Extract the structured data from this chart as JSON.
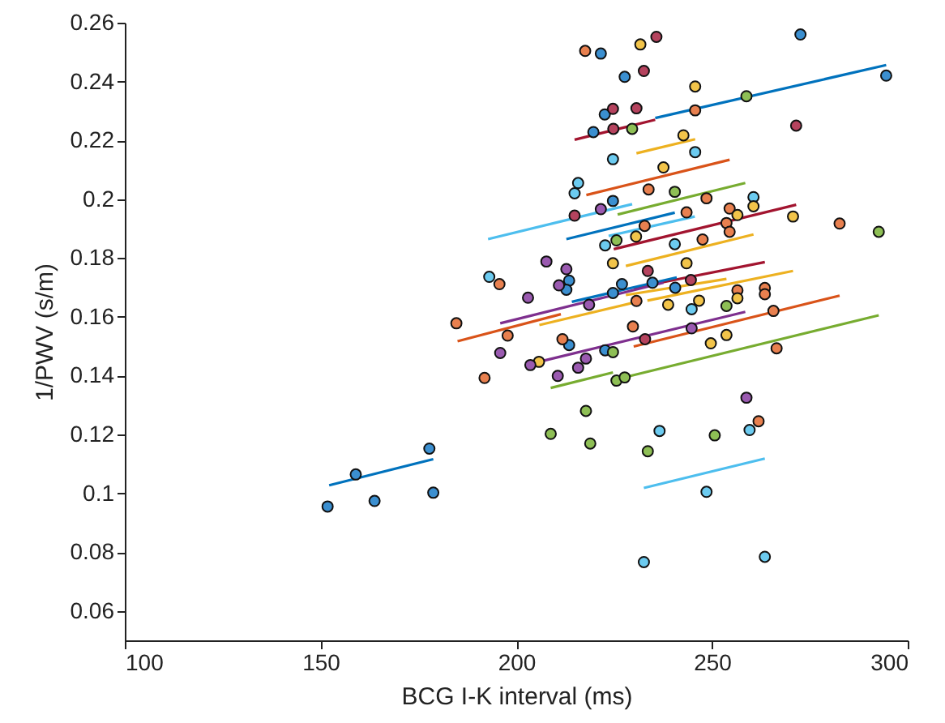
{
  "chart_data": {
    "type": "scatter",
    "xlabel": "BCG I-K interval (ms)",
    "ylabel": "1/PWV (s/m)",
    "xlim": [
      100,
      300
    ],
    "xticks": [
      100,
      150,
      200,
      250,
      300
    ],
    "ylim": [
      0.05,
      0.26
    ],
    "yticks": [
      0.06,
      0.08,
      0.1,
      0.12,
      0.14,
      0.16,
      0.18,
      0.2,
      0.22,
      0.24,
      0.26
    ],
    "grid": false,
    "marker": "circle",
    "series": [
      {
        "type": "scatter",
        "color": "#3b8fd0",
        "x": [
          221.6,
          272.6,
          227.7,
          294.5,
          222.6,
          219.7,
          224.7,
          213.5,
          212.8,
          227,
          234.8,
          240.6,
          224.7,
          213.5,
          222.7,
          151.8,
          159,
          163.8,
          177.8,
          178.8
        ],
        "values": [
          0.2495,
          0.256,
          0.2416,
          0.242,
          0.2288,
          0.2228,
          0.1994,
          0.1723,
          0.1692,
          0.1711,
          0.1716,
          0.1699,
          0.1681,
          0.1504,
          0.1486,
          0.0955,
          0.1064,
          0.0974,
          0.1152,
          0.1002
        ]
      },
      {
        "type": "scatter",
        "color": "#6ccbf0",
        "x": [
          224.7,
          245.7,
          215.8,
          214.9,
          260.6,
          222.7,
          240.5,
          193.1,
          244.8,
          259.6,
          236.6,
          248.6,
          232.6,
          263.5
        ],
        "values": [
          0.2136,
          0.216,
          0.2055,
          0.202,
          0.2007,
          0.1843,
          0.1847,
          0.1736,
          0.1626,
          0.1215,
          0.1212,
          0.1005,
          0.0766,
          0.0784
        ]
      },
      {
        "type": "scatter",
        "color": "#e8804f",
        "x": [
          217.6,
          245.7,
          233.8,
          248.6,
          254.5,
          243.5,
          282.6,
          232.8,
          253.7,
          254.5,
          247.6,
          195.7,
          256.5,
          263.5,
          263.5,
          230.7,
          265.7,
          229.8,
          211.8,
          266.5,
          184.7,
          197.8,
          191.9,
          261.9
        ],
        "values": [
          0.2504,
          0.2302,
          0.2033,
          0.2003,
          0.1968,
          0.1955,
          0.1917,
          0.1909,
          0.1919,
          0.1889,
          0.1863,
          0.1711,
          0.169,
          0.1698,
          0.1677,
          0.1654,
          0.162,
          0.1567,
          0.1524,
          0.1493,
          0.1578,
          0.1536,
          0.1392,
          0.1245
        ]
      },
      {
        "type": "scatter",
        "color": "#f2c44a",
        "x": [
          231.7,
          245.7,
          242.7,
          237.6,
          260.6,
          256.5,
          270.7,
          230.6,
          224.7,
          243.5,
          256.5,
          246.7,
          238.8,
          249.7,
          253.7,
          205.8
        ],
        "values": [
          0.2526,
          0.2383,
          0.2217,
          0.2108,
          0.1976,
          0.1946,
          0.1941,
          0.1873,
          0.1782,
          0.1782,
          0.1663,
          0.1655,
          0.1641,
          0.151,
          0.1538,
          0.1447
        ]
      },
      {
        "type": "scatter",
        "color": "#9a5ab0",
        "x": [
          221.6,
          207.7,
          212.8,
          210.9,
          203,
          218.6,
          244.8,
          195.9,
          203.6,
          210.6,
          215.8,
          217.8,
          258.8
        ],
        "values": [
          0.1966,
          0.1788,
          0.1762,
          0.1707,
          0.1665,
          0.1641,
          0.1561,
          0.1477,
          0.1436,
          0.1399,
          0.1427,
          0.1458,
          0.1325
        ]
      },
      {
        "type": "scatter",
        "color": "#8ebf55",
        "x": [
          258.8,
          229.6,
          240.5,
          292.6,
          225.6,
          253.7,
          224.7,
          225.6,
          227.7,
          217.8,
          208.8,
          218.9,
          233.6,
          250.7
        ],
        "values": [
          0.235,
          0.2239,
          0.2025,
          0.1889,
          0.186,
          0.1637,
          0.148,
          0.1383,
          0.1394,
          0.128,
          0.1202,
          0.1169,
          0.1143,
          0.1197
        ]
      },
      {
        "type": "scatter",
        "color": "#b5435e",
        "x": [
          235.8,
          232.6,
          224.7,
          230.7,
          224.8,
          271.5,
          214.9,
          233.6,
          244.6,
          232.9
        ],
        "values": [
          0.2552,
          0.2436,
          0.2307,
          0.2309,
          0.2239,
          0.225,
          0.1944,
          0.1756,
          0.1725,
          0.1524
        ]
      },
      {
        "type": "line",
        "marker": "none",
        "color": "#0072bd",
        "x": [
          235.5,
          294.5
        ],
        "values": [
          0.2276,
          0.2456
        ]
      },
      {
        "type": "line",
        "marker": "none",
        "color": "#a2142f",
        "x": [
          214.9,
          235.5
        ],
        "values": [
          0.2202,
          0.227
        ]
      },
      {
        "type": "line",
        "marker": "none",
        "color": "#edb120",
        "x": [
          230.7,
          245.7
        ],
        "values": [
          0.2156,
          0.2204
        ]
      },
      {
        "type": "line",
        "marker": "none",
        "color": "#d95319",
        "x": [
          217.9,
          254.5
        ],
        "values": [
          0.2014,
          0.2134
        ]
      },
      {
        "type": "line",
        "marker": "none",
        "color": "#77ac30",
        "x": [
          225.9,
          258.5
        ],
        "values": [
          0.1948,
          0.2055
        ]
      },
      {
        "type": "line",
        "marker": "none",
        "color": "#4dbeee",
        "x": [
          192.8,
          229.6
        ],
        "values": [
          0.1864,
          0.1983
        ]
      },
      {
        "type": "line",
        "marker": "none",
        "color": "#0072bd",
        "x": [
          212.8,
          240.5
        ],
        "values": [
          0.1864,
          0.1954
        ]
      },
      {
        "type": "line",
        "marker": "none",
        "color": "#4dbeee",
        "x": [
          223.6,
          245.6
        ],
        "values": [
          0.1875,
          0.1941
        ]
      },
      {
        "type": "line",
        "marker": "none",
        "color": "#a2142f",
        "x": [
          224.9,
          271.5
        ],
        "values": [
          0.183,
          0.1981
        ]
      },
      {
        "type": "line",
        "marker": "none",
        "color": "#edb120",
        "x": [
          228,
          260.6
        ],
        "values": [
          0.1773,
          0.188
        ]
      },
      {
        "type": "line",
        "marker": "none",
        "color": "#a2142f",
        "x": [
          230,
          263.5
        ],
        "values": [
          0.1698,
          0.1786
        ]
      },
      {
        "type": "line",
        "marker": "none",
        "color": "#edb120",
        "x": [
          233.5,
          270.7
        ],
        "values": [
          0.1655,
          0.1756
        ]
      },
      {
        "type": "line",
        "marker": "none",
        "color": "#edb120",
        "x": [
          228,
          253.7
        ],
        "values": [
          0.1674,
          0.1729
        ]
      },
      {
        "type": "line",
        "marker": "none",
        "color": "#0072bd",
        "x": [
          214.2,
          241
        ],
        "values": [
          0.1651,
          0.1734
        ]
      },
      {
        "type": "line",
        "marker": "none",
        "color": "#7e2f8e",
        "x": [
          195.9,
          237.6
        ],
        "values": [
          0.1578,
          0.1716
        ]
      },
      {
        "type": "line",
        "marker": "none",
        "color": "#d95319",
        "x": [
          185,
          211.4
        ],
        "values": [
          0.1517,
          0.1609
        ]
      },
      {
        "type": "line",
        "marker": "none",
        "color": "#edb120",
        "x": [
          205.9,
          232.1
        ],
        "values": [
          0.1572,
          0.1655
        ]
      },
      {
        "type": "line",
        "marker": "none",
        "color": "#d95319",
        "x": [
          230,
          282.6
        ],
        "values": [
          0.1499,
          0.1672
        ]
      },
      {
        "type": "line",
        "marker": "none",
        "color": "#7e2f8e",
        "x": [
          205.8,
          258.5
        ],
        "values": [
          0.1447,
          0.1617
        ]
      },
      {
        "type": "line",
        "marker": "none",
        "color": "#77ac30",
        "x": [
          226.4,
          292.6
        ],
        "values": [
          0.139,
          0.1605
        ]
      },
      {
        "type": "line",
        "marker": "none",
        "color": "#77ac30",
        "x": [
          208.8,
          224.7
        ],
        "values": [
          0.1358,
          0.1411
        ]
      },
      {
        "type": "line",
        "marker": "none",
        "color": "#4dbeee",
        "x": [
          232.6,
          263.5
        ],
        "values": [
          0.1018,
          0.1118
        ]
      },
      {
        "type": "line",
        "marker": "none",
        "color": "#0072bd",
        "x": [
          152.2,
          178.8
        ],
        "values": [
          0.1027,
          0.1116
        ]
      }
    ]
  }
}
